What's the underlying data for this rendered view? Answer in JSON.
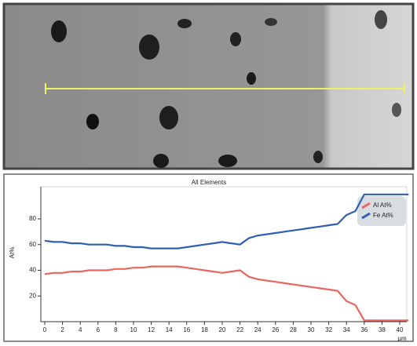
{
  "chart_data": {
    "type": "line",
    "title": "All Elements",
    "y_label": "At%",
    "x_label": "µm",
    "x": [
      0,
      1,
      2,
      3,
      4,
      5,
      6,
      7,
      8,
      9,
      10,
      11,
      12,
      13,
      14,
      15,
      16,
      17,
      18,
      19,
      20,
      21,
      22,
      23,
      24,
      25,
      26,
      27,
      28,
      29,
      30,
      31,
      32,
      33,
      34,
      35,
      36,
      37,
      38,
      39,
      40,
      41
    ],
    "series": [
      {
        "name": "Al At%",
        "color": "#e8675f",
        "values": [
          37,
          38,
          38,
          39,
          39,
          40,
          40,
          40,
          41,
          41,
          42,
          42,
          43,
          43,
          43,
          43,
          42,
          41,
          40,
          39,
          38,
          39,
          40,
          35,
          33,
          32,
          31,
          30,
          29,
          28,
          27,
          26,
          25,
          24,
          16,
          13,
          1,
          1,
          1,
          1,
          1,
          1
        ]
      },
      {
        "name": "Fe At%",
        "color": "#2f5fb3",
        "values": [
          63,
          62,
          62,
          61,
          61,
          60,
          60,
          60,
          59,
          59,
          58,
          58,
          57,
          57,
          57,
          57,
          58,
          59,
          60,
          61,
          62,
          61,
          60,
          65,
          67,
          68,
          69,
          70,
          71,
          72,
          73,
          74,
          75,
          76,
          83,
          86,
          99,
          99,
          99,
          99,
          99,
          99
        ]
      }
    ],
    "xlim": [
      0,
      41
    ],
    "xticks": [
      0,
      2,
      4,
      6,
      8,
      10,
      12,
      14,
      16,
      18,
      20,
      22,
      24,
      26,
      28,
      30,
      32,
      34,
      36,
      38,
      40
    ],
    "ylim": [
      0,
      105
    ],
    "yticks": [
      20,
      40,
      60,
      80
    ]
  }
}
